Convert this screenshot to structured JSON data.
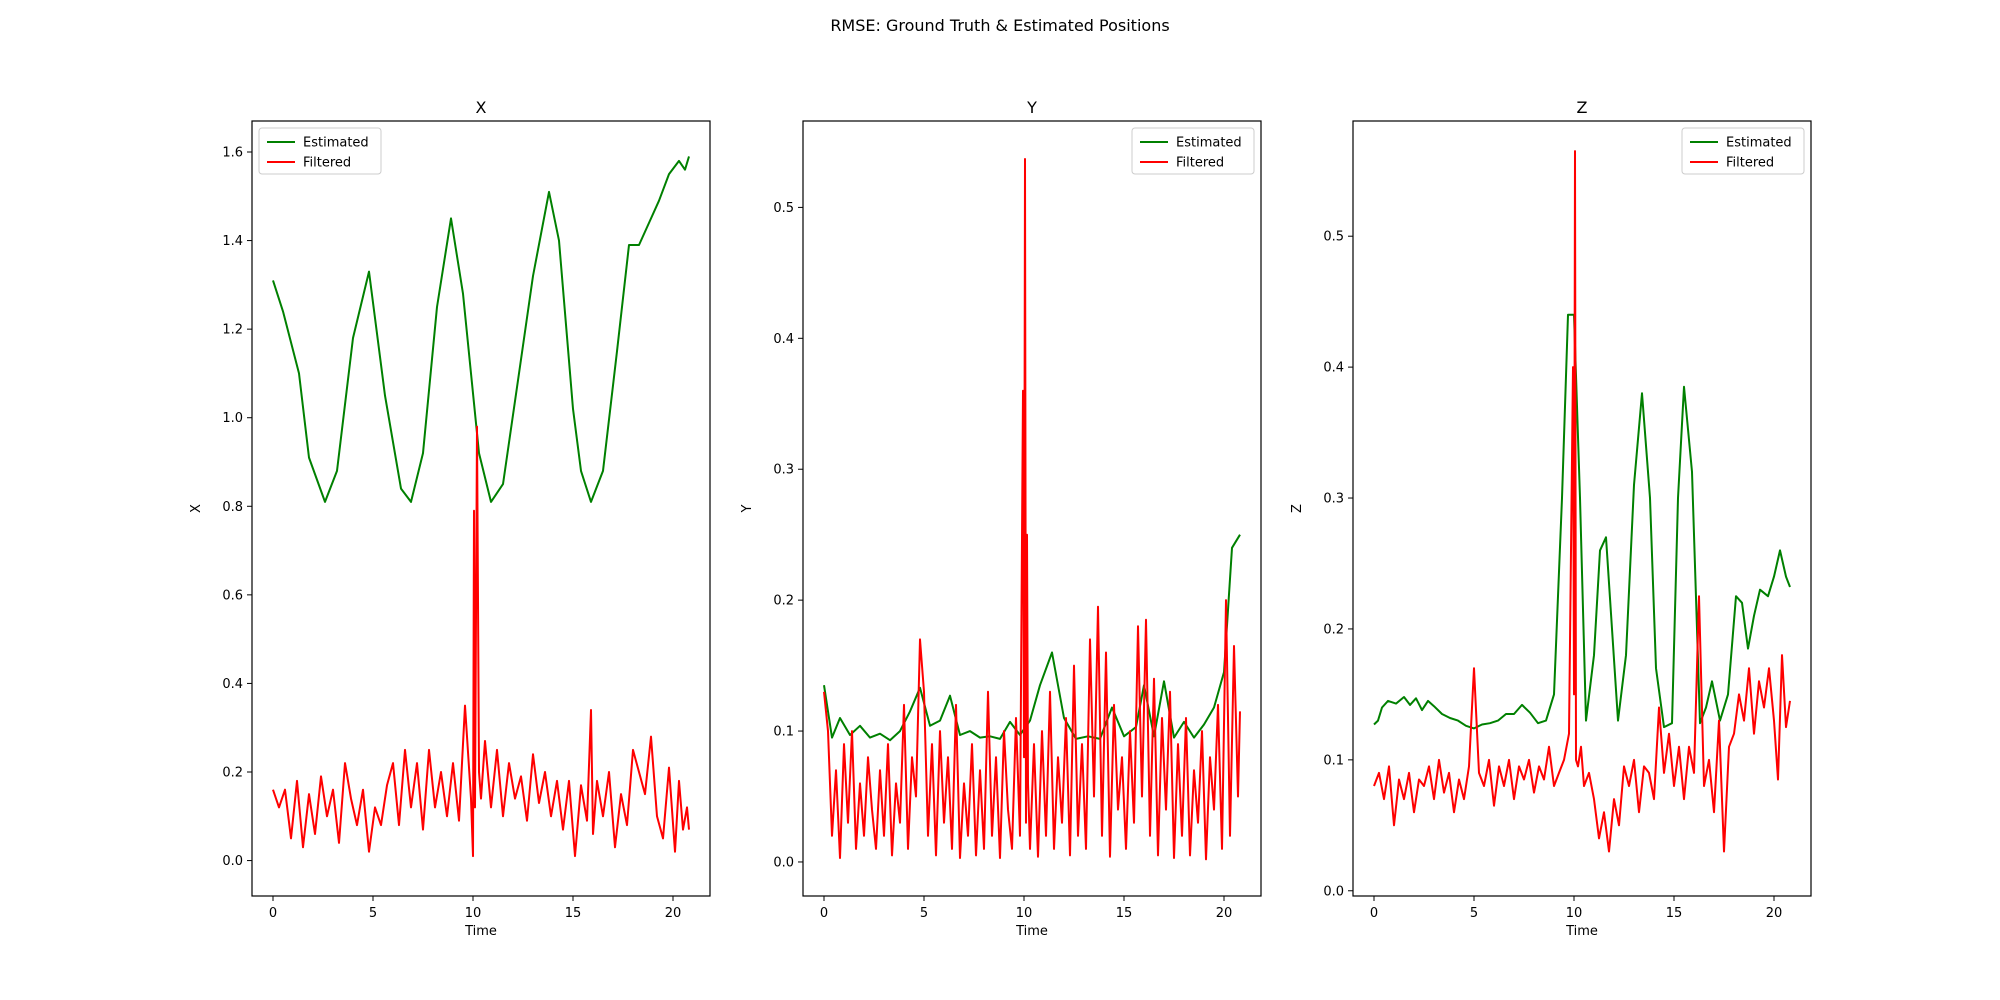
{
  "figure": {
    "suptitle": "RMSE: Ground Truth & Estimated Positions"
  },
  "colors": {
    "estimated": "#008000",
    "filtered": "#ff0000",
    "axes": "#000000",
    "legend_border": "#cccccc"
  },
  "chart_data": [
    {
      "type": "line",
      "title": "X",
      "xlabel": "Time",
      "ylabel": "X",
      "xlim": [
        -1.05,
        21.85
      ],
      "ylim": [
        -0.08,
        1.67
      ],
      "xticks": [
        0,
        5,
        10,
        15,
        20
      ],
      "yticks": [
        0.0,
        0.2,
        0.4,
        0.6,
        0.8,
        1.0,
        1.2,
        1.4,
        1.6
      ],
      "ytick_labels": [
        "0.0",
        "0.2",
        "0.4",
        "0.6",
        "0.8",
        "1.0",
        "1.2",
        "1.4",
        "1.6"
      ],
      "legend_loc": "upper left",
      "grid": false,
      "series": [
        {
          "name": "Estimated",
          "color": "#008000",
          "x": [
            0,
            0.5,
            1.3,
            1.8,
            2.6,
            3.2,
            4.0,
            4.8,
            5.6,
            6.4,
            6.9,
            7.5,
            8.2,
            8.9,
            9.5,
            10.3,
            10.9,
            11.5,
            12.3,
            13.0,
            13.8,
            14.3,
            15.0,
            15.4,
            15.9,
            16.5,
            17.2,
            17.8,
            18.3,
            18.8,
            19.3,
            19.8,
            20.3,
            20.6,
            20.8
          ],
          "y": [
            1.31,
            1.24,
            1.1,
            0.91,
            0.81,
            0.88,
            1.18,
            1.33,
            1.05,
            0.84,
            0.81,
            0.92,
            1.25,
            1.45,
            1.28,
            0.92,
            0.81,
            0.85,
            1.1,
            1.32,
            1.51,
            1.4,
            1.02,
            0.88,
            0.81,
            0.88,
            1.15,
            1.39,
            1.39,
            1.44,
            1.49,
            1.55,
            1.58,
            1.56,
            1.59
          ]
        },
        {
          "name": "Filtered",
          "color": "#ff0000",
          "x": [
            0,
            0.3,
            0.6,
            0.9,
            1.2,
            1.5,
            1.8,
            2.1,
            2.4,
            2.7,
            3.0,
            3.3,
            3.6,
            3.9,
            4.2,
            4.5,
            4.8,
            5.1,
            5.4,
            5.7,
            6.0,
            6.3,
            6.6,
            6.9,
            7.2,
            7.5,
            7.8,
            8.1,
            8.4,
            8.7,
            9.0,
            9.3,
            9.6,
            9.9,
            10.0,
            10.05,
            10.1,
            10.2,
            10.3,
            10.4,
            10.6,
            10.9,
            11.2,
            11.5,
            11.8,
            12.1,
            12.4,
            12.7,
            13.0,
            13.3,
            13.6,
            13.9,
            14.2,
            14.5,
            14.8,
            15.1,
            15.4,
            15.7,
            15.9,
            16.0,
            16.2,
            16.5,
            16.8,
            17.1,
            17.4,
            17.7,
            18.0,
            18.3,
            18.6,
            18.9,
            19.2,
            19.5,
            19.8,
            20.1,
            20.3,
            20.5,
            20.7,
            20.8
          ],
          "y": [
            0.16,
            0.12,
            0.16,
            0.05,
            0.18,
            0.03,
            0.15,
            0.06,
            0.19,
            0.1,
            0.16,
            0.04,
            0.22,
            0.14,
            0.08,
            0.16,
            0.02,
            0.12,
            0.08,
            0.17,
            0.22,
            0.08,
            0.25,
            0.12,
            0.22,
            0.07,
            0.25,
            0.12,
            0.2,
            0.1,
            0.22,
            0.09,
            0.35,
            0.14,
            0.01,
            0.79,
            0.12,
            0.98,
            0.2,
            0.14,
            0.27,
            0.12,
            0.25,
            0.1,
            0.22,
            0.14,
            0.19,
            0.09,
            0.24,
            0.13,
            0.2,
            0.1,
            0.18,
            0.07,
            0.18,
            0.01,
            0.17,
            0.09,
            0.34,
            0.06,
            0.18,
            0.1,
            0.2,
            0.03,
            0.15,
            0.08,
            0.25,
            0.2,
            0.15,
            0.28,
            0.1,
            0.05,
            0.21,
            0.02,
            0.18,
            0.07,
            0.12,
            0.07
          ]
        }
      ]
    },
    {
      "type": "line",
      "title": "Y",
      "xlabel": "Time",
      "ylabel": "Y",
      "xlim": [
        -1.05,
        21.85
      ],
      "ylim": [
        -0.026,
        0.566
      ],
      "xticks": [
        0,
        5,
        10,
        15,
        20
      ],
      "yticks": [
        0.0,
        0.1,
        0.2,
        0.3,
        0.4,
        0.5
      ],
      "ytick_labels": [
        "0.0",
        "0.1",
        "0.2",
        "0.3",
        "0.4",
        "0.5"
      ],
      "legend_loc": "upper right",
      "grid": false,
      "series": [
        {
          "name": "Estimated",
          "color": "#008000",
          "x": [
            0,
            0.4,
            0.8,
            1.3,
            1.8,
            2.3,
            2.8,
            3.3,
            3.8,
            4.3,
            4.8,
            5.3,
            5.8,
            6.3,
            6.8,
            7.3,
            7.8,
            8.3,
            8.8,
            9.3,
            9.8,
            10.3,
            10.8,
            11.4,
            12.0,
            12.6,
            13.2,
            13.8,
            14.4,
            15.0,
            15.6,
            16.0,
            16.5,
            17.0,
            17.5,
            18.0,
            18.5,
            19.0,
            19.5,
            20.0,
            20.4,
            20.8
          ],
          "y": [
            0.135,
            0.095,
            0.11,
            0.097,
            0.104,
            0.095,
            0.098,
            0.093,
            0.1,
            0.115,
            0.133,
            0.104,
            0.108,
            0.127,
            0.097,
            0.1,
            0.095,
            0.096,
            0.094,
            0.107,
            0.097,
            0.108,
            0.135,
            0.16,
            0.11,
            0.094,
            0.096,
            0.094,
            0.118,
            0.096,
            0.103,
            0.135,
            0.096,
            0.138,
            0.095,
            0.107,
            0.095,
            0.105,
            0.118,
            0.145,
            0.24,
            0.25
          ]
        },
        {
          "name": "Filtered",
          "color": "#ff0000",
          "x": [
            0,
            0.2,
            0.4,
            0.6,
            0.8,
            1.0,
            1.2,
            1.4,
            1.6,
            1.8,
            2.0,
            2.2,
            2.4,
            2.6,
            2.8,
            3.0,
            3.2,
            3.4,
            3.6,
            3.8,
            4.0,
            4.2,
            4.4,
            4.6,
            4.8,
            5.0,
            5.2,
            5.4,
            5.6,
            5.8,
            6.0,
            6.2,
            6.4,
            6.6,
            6.8,
            7.0,
            7.2,
            7.4,
            7.6,
            7.8,
            8.0,
            8.2,
            8.4,
            8.6,
            8.8,
            9.0,
            9.2,
            9.4,
            9.6,
            9.8,
            9.95,
            10.0,
            10.05,
            10.1,
            10.15,
            10.2,
            10.3,
            10.5,
            10.7,
            10.9,
            11.1,
            11.3,
            11.5,
            11.7,
            11.9,
            12.1,
            12.3,
            12.5,
            12.7,
            12.9,
            13.1,
            13.3,
            13.5,
            13.7,
            13.9,
            14.1,
            14.3,
            14.5,
            14.7,
            14.9,
            15.1,
            15.3,
            15.5,
            15.7,
            15.9,
            16.1,
            16.3,
            16.5,
            16.7,
            16.9,
            17.1,
            17.3,
            17.5,
            17.7,
            17.9,
            18.1,
            18.3,
            18.5,
            18.7,
            18.9,
            19.1,
            19.3,
            19.5,
            19.7,
            19.9,
            20.1,
            20.3,
            20.5,
            20.7,
            20.8
          ],
          "y": [
            0.13,
            0.1,
            0.02,
            0.07,
            0.003,
            0.09,
            0.03,
            0.1,
            0.01,
            0.06,
            0.02,
            0.08,
            0.04,
            0.01,
            0.07,
            0.02,
            0.09,
            0.005,
            0.06,
            0.03,
            0.12,
            0.01,
            0.08,
            0.05,
            0.17,
            0.13,
            0.02,
            0.09,
            0.005,
            0.1,
            0.03,
            0.08,
            0.01,
            0.12,
            0.003,
            0.06,
            0.02,
            0.09,
            0.005,
            0.07,
            0.01,
            0.13,
            0.02,
            0.08,
            0.003,
            0.1,
            0.04,
            0.01,
            0.11,
            0.02,
            0.36,
            0.08,
            0.537,
            0.03,
            0.25,
            0.06,
            0.01,
            0.09,
            0.004,
            0.1,
            0.02,
            0.13,
            0.01,
            0.08,
            0.03,
            0.11,
            0.005,
            0.15,
            0.02,
            0.09,
            0.01,
            0.17,
            0.05,
            0.195,
            0.02,
            0.16,
            0.004,
            0.12,
            0.04,
            0.08,
            0.01,
            0.1,
            0.03,
            0.18,
            0.05,
            0.185,
            0.02,
            0.14,
            0.005,
            0.11,
            0.04,
            0.13,
            0.003,
            0.09,
            0.02,
            0.11,
            0.005,
            0.07,
            0.03,
            0.1,
            0.002,
            0.08,
            0.04,
            0.12,
            0.01,
            0.2,
            0.02,
            0.165,
            0.05,
            0.115
          ]
        }
      ]
    },
    {
      "type": "line",
      "title": "Z",
      "xlabel": "Time",
      "ylabel": "Z",
      "xlim": [
        -1.05,
        21.85
      ],
      "ylim": [
        -0.004,
        0.588
      ],
      "xticks": [
        0,
        5,
        10,
        15,
        20
      ],
      "yticks": [
        0.0,
        0.1,
        0.2,
        0.3,
        0.4,
        0.5
      ],
      "ytick_labels": [
        "0.0",
        "0.1",
        "0.2",
        "0.3",
        "0.4",
        "0.5"
      ],
      "legend_loc": "upper right",
      "grid": false,
      "series": [
        {
          "name": "Estimated",
          "color": "#008000",
          "x": [
            0,
            0.2,
            0.4,
            0.7,
            1.1,
            1.5,
            1.8,
            2.1,
            2.4,
            2.7,
            3.0,
            3.4,
            3.8,
            4.2,
            4.6,
            5.0,
            5.4,
            5.8,
            6.2,
            6.6,
            7.0,
            7.4,
            7.8,
            8.2,
            8.6,
            9.0,
            9.4,
            9.7,
            10.0,
            10.3,
            10.6,
            11.0,
            11.3,
            11.6,
            11.9,
            12.2,
            12.6,
            13.0,
            13.4,
            13.8,
            14.1,
            14.5,
            14.9,
            15.2,
            15.5,
            15.9,
            16.3,
            16.6,
            16.9,
            17.3,
            17.7,
            18.1,
            18.4,
            18.7,
            19.0,
            19.3,
            19.7,
            20.0,
            20.3,
            20.6,
            20.8
          ],
          "y": [
            0.127,
            0.13,
            0.14,
            0.145,
            0.143,
            0.148,
            0.142,
            0.147,
            0.138,
            0.145,
            0.141,
            0.135,
            0.132,
            0.13,
            0.126,
            0.124,
            0.127,
            0.128,
            0.13,
            0.135,
            0.135,
            0.142,
            0.136,
            0.128,
            0.13,
            0.15,
            0.3,
            0.44,
            0.44,
            0.3,
            0.13,
            0.18,
            0.26,
            0.27,
            0.2,
            0.13,
            0.18,
            0.31,
            0.38,
            0.3,
            0.17,
            0.125,
            0.128,
            0.3,
            0.385,
            0.32,
            0.128,
            0.14,
            0.16,
            0.13,
            0.15,
            0.225,
            0.22,
            0.185,
            0.21,
            0.23,
            0.225,
            0.24,
            0.26,
            0.24,
            0.232
          ]
        },
        {
          "name": "Filtered",
          "color": "#ff0000",
          "x": [
            0,
            0.25,
            0.5,
            0.75,
            1.0,
            1.25,
            1.5,
            1.75,
            2.0,
            2.25,
            2.5,
            2.75,
            3.0,
            3.25,
            3.5,
            3.75,
            4.0,
            4.25,
            4.5,
            4.75,
            5.0,
            5.25,
            5.5,
            5.75,
            6.0,
            6.25,
            6.5,
            6.75,
            7.0,
            7.25,
            7.5,
            7.75,
            8.0,
            8.25,
            8.5,
            8.75,
            9.0,
            9.25,
            9.5,
            9.75,
            9.95,
            10.0,
            10.05,
            10.1,
            10.2,
            10.35,
            10.5,
            10.75,
            11.0,
            11.25,
            11.5,
            11.75,
            12.0,
            12.25,
            12.5,
            12.75,
            13.0,
            13.25,
            13.5,
            13.75,
            14.0,
            14.25,
            14.5,
            14.75,
            15.0,
            15.25,
            15.5,
            15.75,
            16.0,
            16.25,
            16.5,
            16.75,
            17.0,
            17.25,
            17.5,
            17.75,
            18.0,
            18.25,
            18.5,
            18.75,
            19.0,
            19.25,
            19.5,
            19.75,
            20.0,
            20.2,
            20.4,
            20.6,
            20.8
          ],
          "y": [
            0.08,
            0.09,
            0.07,
            0.095,
            0.05,
            0.085,
            0.07,
            0.09,
            0.06,
            0.085,
            0.08,
            0.095,
            0.07,
            0.1,
            0.075,
            0.09,
            0.06,
            0.085,
            0.07,
            0.095,
            0.17,
            0.09,
            0.08,
            0.1,
            0.065,
            0.095,
            0.08,
            0.1,
            0.07,
            0.095,
            0.085,
            0.1,
            0.075,
            0.095,
            0.085,
            0.11,
            0.08,
            0.09,
            0.1,
            0.12,
            0.4,
            0.15,
            0.565,
            0.1,
            0.095,
            0.11,
            0.08,
            0.09,
            0.07,
            0.04,
            0.06,
            0.03,
            0.07,
            0.05,
            0.095,
            0.08,
            0.1,
            0.06,
            0.095,
            0.09,
            0.07,
            0.14,
            0.09,
            0.12,
            0.08,
            0.11,
            0.07,
            0.11,
            0.09,
            0.225,
            0.08,
            0.1,
            0.06,
            0.13,
            0.03,
            0.11,
            0.12,
            0.15,
            0.13,
            0.17,
            0.12,
            0.16,
            0.14,
            0.17,
            0.13,
            0.085,
            0.18,
            0.125,
            0.145
          ]
        }
      ]
    }
  ]
}
